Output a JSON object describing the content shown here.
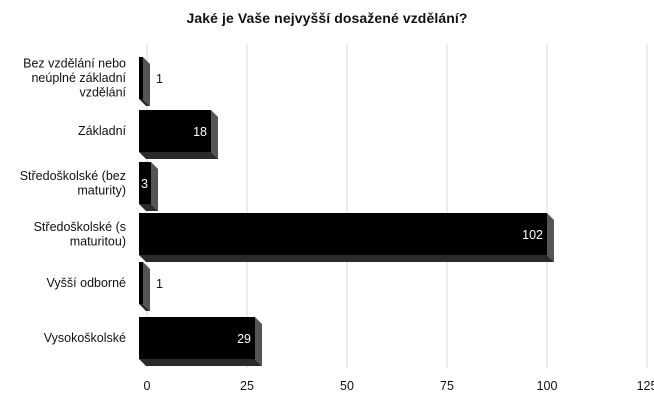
{
  "chart_data": {
    "type": "bar",
    "orientation": "horizontal",
    "title": "Jaké je Vaše nejvyšší dosažené vzdělání?",
    "categories": [
      "Bez vzdělání nebo neúplné základní vzdělání",
      "Základní",
      "Středoškolské (bez maturity)",
      "Středoškolské (s maturitou)",
      "Vyšší odborné",
      "Vysokoškolské"
    ],
    "category_lines": [
      [
        "Bez vzdělání nebo",
        "neúplné základní",
        "vzdělání"
      ],
      [
        "Základní"
      ],
      [
        "Středoškolské (bez",
        "maturity)"
      ],
      [
        "Středoškolské (s",
        "maturitou)"
      ],
      [
        "Vyšší odborné"
      ],
      [
        "Vysokoškolské"
      ]
    ],
    "values": [
      1,
      18,
      3,
      102,
      1,
      29
    ],
    "data_labels": [
      "1",
      "18",
      "3",
      "102",
      "1",
      "29"
    ],
    "xlim": [
      0,
      125
    ],
    "xticks": [
      0,
      25,
      50,
      75,
      100,
      125
    ],
    "xlabel": "",
    "ylabel": "",
    "grid": "vertical",
    "bar_color": "#000000",
    "bar_side_color": "#555555",
    "grid_color": "#d9d9d9"
  }
}
